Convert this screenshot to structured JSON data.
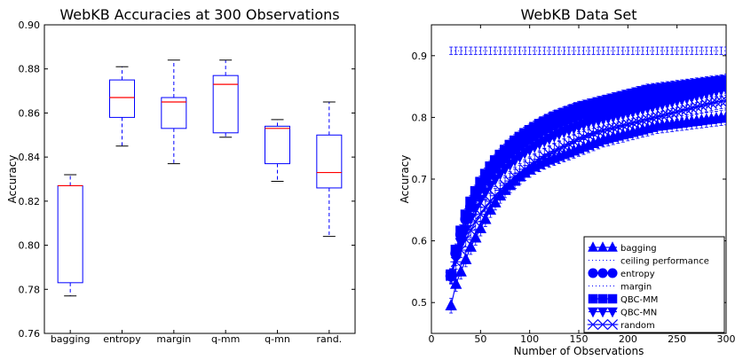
{
  "chart_data": [
    {
      "type": "box",
      "title": "WebKB Accuracies at 300 Observations",
      "xlabel": "",
      "ylabel": "Accuracy",
      "ylim": [
        0.76,
        0.9
      ],
      "yticks": [
        0.76,
        0.78,
        0.8,
        0.82,
        0.84,
        0.86,
        0.88,
        0.9
      ],
      "categories": [
        "bagging",
        "entropy",
        "margin",
        "q-mm",
        "q-mn",
        "rand."
      ],
      "series": [
        {
          "name": "bagging",
          "whisker_low": 0.777,
          "q1": 0.783,
          "median": 0.827,
          "q3": 0.827,
          "whisker_high": 0.832
        },
        {
          "name": "entropy",
          "whisker_low": 0.845,
          "q1": 0.858,
          "median": 0.867,
          "q3": 0.875,
          "whisker_high": 0.881
        },
        {
          "name": "margin",
          "whisker_low": 0.837,
          "q1": 0.853,
          "median": 0.865,
          "q3": 0.867,
          "whisker_high": 0.884
        },
        {
          "name": "q-mm",
          "whisker_low": 0.849,
          "q1": 0.851,
          "median": 0.873,
          "q3": 0.877,
          "whisker_high": 0.884
        },
        {
          "name": "q-mn",
          "whisker_low": 0.829,
          "q1": 0.837,
          "median": 0.853,
          "q3": 0.854,
          "whisker_high": 0.857
        },
        {
          "name": "rand.",
          "whisker_low": 0.804,
          "q1": 0.826,
          "median": 0.833,
          "q3": 0.85,
          "whisker_high": 0.865
        }
      ],
      "colors": {
        "box": "#0000ff",
        "median": "#ff0000",
        "whisker": "#0000ff",
        "cap": "#000000",
        "axis": "#000000",
        "text": "#000000"
      }
    },
    {
      "type": "line",
      "title": "WebKB Data Set",
      "xlabel": "Number of Observations",
      "ylabel": "Accuracy",
      "xlim": [
        0,
        300
      ],
      "ylim": [
        0.45,
        0.95
      ],
      "xticks": [
        0,
        50,
        100,
        150,
        200,
        250,
        300
      ],
      "yticks": [
        0.5,
        0.6,
        0.7,
        0.8,
        0.9
      ],
      "legend_placement": "bottom-right",
      "x": [
        20,
        25,
        30,
        35,
        40,
        45,
        50,
        55,
        60,
        65,
        70,
        75,
        80,
        85,
        90,
        95,
        100,
        105,
        110,
        115,
        120,
        125,
        130,
        135,
        140,
        145,
        150,
        155,
        160,
        165,
        170,
        175,
        180,
        185,
        190,
        195,
        200,
        205,
        210,
        215,
        220,
        225,
        230,
        235,
        240,
        245,
        250,
        255,
        260,
        265,
        270,
        275,
        280,
        285,
        290,
        295,
        300
      ],
      "series": [
        {
          "name": "bagging",
          "marker": "triangle-up",
          "style": "solid",
          "error": 0.012,
          "values": [
            0.495,
            0.53,
            0.55,
            0.57,
            0.59,
            0.605,
            0.62,
            0.635,
            0.65,
            0.662,
            0.673,
            0.682,
            0.69,
            0.697,
            0.704,
            0.71,
            0.715,
            0.72,
            0.724,
            0.728,
            0.731,
            0.734,
            0.737,
            0.74,
            0.743,
            0.746,
            0.749,
            0.752,
            0.755,
            0.758,
            0.761,
            0.764,
            0.766,
            0.768,
            0.77,
            0.772,
            0.774,
            0.776,
            0.778,
            0.78,
            0.782,
            0.784,
            0.786,
            0.787,
            0.788,
            0.789,
            0.79,
            0.791,
            0.792,
            0.793,
            0.794,
            0.795,
            0.796,
            0.797,
            0.798,
            0.799,
            0.8
          ]
        },
        {
          "name": "ceiling performance",
          "marker": "none",
          "style": "dotted",
          "error": 0.006,
          "values": [
            0.908,
            0.908,
            0.908,
            0.908,
            0.908,
            0.908,
            0.908,
            0.908,
            0.908,
            0.908,
            0.908,
            0.908,
            0.908,
            0.908,
            0.908,
            0.908,
            0.908,
            0.908,
            0.908,
            0.908,
            0.908,
            0.908,
            0.908,
            0.908,
            0.908,
            0.908,
            0.908,
            0.908,
            0.908,
            0.908,
            0.908,
            0.908,
            0.908,
            0.908,
            0.908,
            0.908,
            0.908,
            0.908,
            0.908,
            0.908,
            0.908,
            0.908,
            0.908,
            0.908,
            0.908,
            0.908,
            0.908,
            0.908,
            0.908,
            0.908,
            0.908,
            0.908,
            0.908,
            0.908,
            0.908,
            0.908,
            0.908
          ]
        },
        {
          "name": "entropy",
          "marker": "circle",
          "style": "solid",
          "error": 0.01,
          "values": [
            0.543,
            0.58,
            0.61,
            0.635,
            0.655,
            0.672,
            0.686,
            0.698,
            0.709,
            0.719,
            0.728,
            0.736,
            0.743,
            0.75,
            0.756,
            0.762,
            0.767,
            0.772,
            0.777,
            0.781,
            0.785,
            0.789,
            0.792,
            0.795,
            0.798,
            0.801,
            0.804,
            0.806,
            0.808,
            0.81,
            0.812,
            0.814,
            0.816,
            0.818,
            0.82,
            0.822,
            0.824,
            0.826,
            0.828,
            0.83,
            0.832,
            0.834,
            0.836,
            0.838,
            0.839,
            0.84,
            0.841,
            0.842,
            0.843,
            0.844,
            0.845,
            0.846,
            0.847,
            0.848,
            0.849,
            0.85,
            0.851
          ]
        },
        {
          "name": "margin",
          "marker": "none",
          "style": "dotted",
          "error": 0.011,
          "values": [
            0.542,
            0.578,
            0.606,
            0.63,
            0.65,
            0.667,
            0.682,
            0.695,
            0.706,
            0.716,
            0.725,
            0.733,
            0.74,
            0.747,
            0.753,
            0.759,
            0.764,
            0.769,
            0.774,
            0.778,
            0.782,
            0.786,
            0.789,
            0.792,
            0.795,
            0.798,
            0.801,
            0.803,
            0.805,
            0.807,
            0.809,
            0.811,
            0.813,
            0.815,
            0.817,
            0.819,
            0.821,
            0.823,
            0.825,
            0.827,
            0.829,
            0.831,
            0.833,
            0.834,
            0.835,
            0.836,
            0.837,
            0.838,
            0.839,
            0.84,
            0.841,
            0.842,
            0.843,
            0.844,
            0.845,
            0.846,
            0.847
          ]
        },
        {
          "name": "QBC-MM",
          "marker": "square",
          "style": "solid",
          "error": 0.01,
          "values": [
            0.545,
            0.585,
            0.616,
            0.642,
            0.663,
            0.68,
            0.695,
            0.708,
            0.72,
            0.73,
            0.739,
            0.747,
            0.755,
            0.762,
            0.768,
            0.774,
            0.779,
            0.784,
            0.789,
            0.793,
            0.797,
            0.801,
            0.804,
            0.807,
            0.81,
            0.813,
            0.816,
            0.818,
            0.82,
            0.822,
            0.824,
            0.826,
            0.828,
            0.83,
            0.832,
            0.834,
            0.836,
            0.838,
            0.84,
            0.842,
            0.844,
            0.845,
            0.846,
            0.847,
            0.848,
            0.849,
            0.85,
            0.851,
            0.852,
            0.853,
            0.854,
            0.855,
            0.856,
            0.857,
            0.858,
            0.859,
            0.86
          ]
        },
        {
          "name": "QBC-MN",
          "marker": "triangle-down",
          "style": "solid",
          "error": 0.012,
          "values": [
            0.542,
            0.572,
            0.597,
            0.618,
            0.637,
            0.653,
            0.667,
            0.679,
            0.69,
            0.7,
            0.709,
            0.717,
            0.724,
            0.731,
            0.737,
            0.743,
            0.748,
            0.753,
            0.758,
            0.762,
            0.766,
            0.77,
            0.774,
            0.777,
            0.78,
            0.783,
            0.786,
            0.789,
            0.792,
            0.794,
            0.796,
            0.798,
            0.8,
            0.802,
            0.804,
            0.806,
            0.808,
            0.81,
            0.812,
            0.814,
            0.816,
            0.818,
            0.82,
            0.822,
            0.824,
            0.826,
            0.828,
            0.83,
            0.832,
            0.834,
            0.836,
            0.838,
            0.84,
            0.842,
            0.844,
            0.846,
            0.848
          ]
        },
        {
          "name": "random",
          "marker": "x",
          "style": "solid",
          "error": 0.012,
          "values": [
            0.543,
            0.566,
            0.585,
            0.602,
            0.617,
            0.631,
            0.643,
            0.654,
            0.664,
            0.673,
            0.682,
            0.69,
            0.697,
            0.704,
            0.71,
            0.716,
            0.722,
            0.727,
            0.732,
            0.737,
            0.741,
            0.745,
            0.749,
            0.753,
            0.757,
            0.761,
            0.765,
            0.768,
            0.771,
            0.774,
            0.777,
            0.779,
            0.781,
            0.783,
            0.785,
            0.787,
            0.789,
            0.791,
            0.793,
            0.795,
            0.797,
            0.799,
            0.801,
            0.803,
            0.805,
            0.807,
            0.809,
            0.811,
            0.813,
            0.815,
            0.817,
            0.819,
            0.821,
            0.823,
            0.825,
            0.826,
            0.827
          ]
        }
      ],
      "colors": {
        "series": "#0000ff",
        "axis": "#000000",
        "text": "#000000"
      }
    }
  ]
}
